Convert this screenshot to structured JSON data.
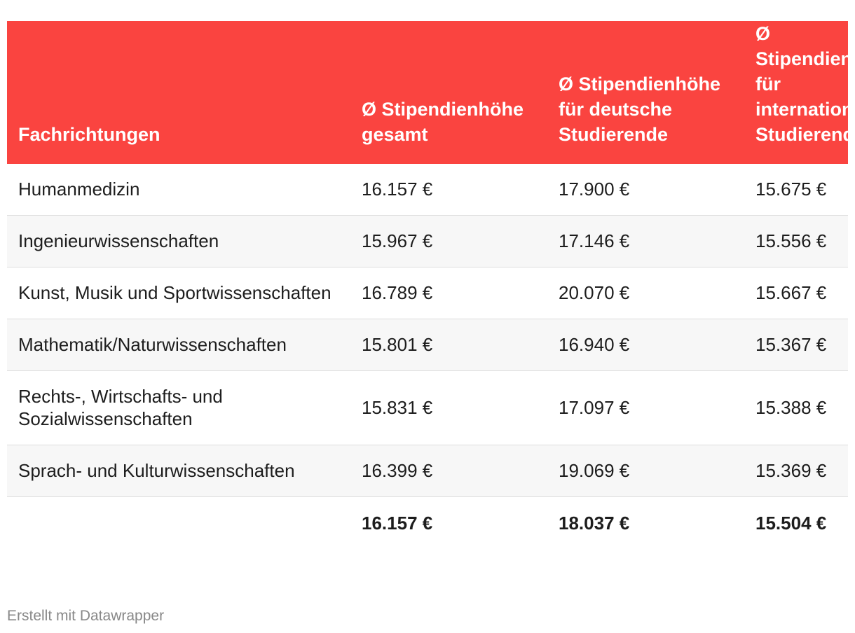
{
  "chart_data": {
    "type": "table",
    "columns": [
      "Fachrichtungen",
      "Ø Stipendienhöhe gesamt",
      "Ø Stipendienhöhe für deutsche Studierende",
      "Ø Stipendienhöhe für internationale Studierende"
    ],
    "rows": [
      [
        "Humanmedizin",
        "16.157 €",
        "17.900 €",
        "15.675 €"
      ],
      [
        "Ingenieurwissenschaften",
        "15.967 €",
        "17.146 €",
        "15.556 €"
      ],
      [
        "Kunst, Musik und Sportwissenschaften",
        "16.789 €",
        "20.070 €",
        "15.667 €"
      ],
      [
        "Mathematik/Naturwissenschaften",
        "15.801 €",
        "16.940 €",
        "15.367 €"
      ],
      [
        "Rechts-, Wirtschafts- und Sozialwissenschaften",
        "15.831 €",
        "17.097 €",
        "15.388 €"
      ],
      [
        "Sprach- und Kulturwissenschaften",
        "16.399 €",
        "19.069 €",
        "15.369 €"
      ]
    ],
    "total": [
      "",
      "16.157 €",
      "18.037 €",
      "15.504 €"
    ]
  },
  "colors": {
    "header_bg": "#fa4440",
    "header_text": "#ffffff",
    "stripe": "#f7f7f7",
    "footer_text": "#888888"
  },
  "footer": {
    "credit": "Erstellt mit Datawrapper"
  }
}
